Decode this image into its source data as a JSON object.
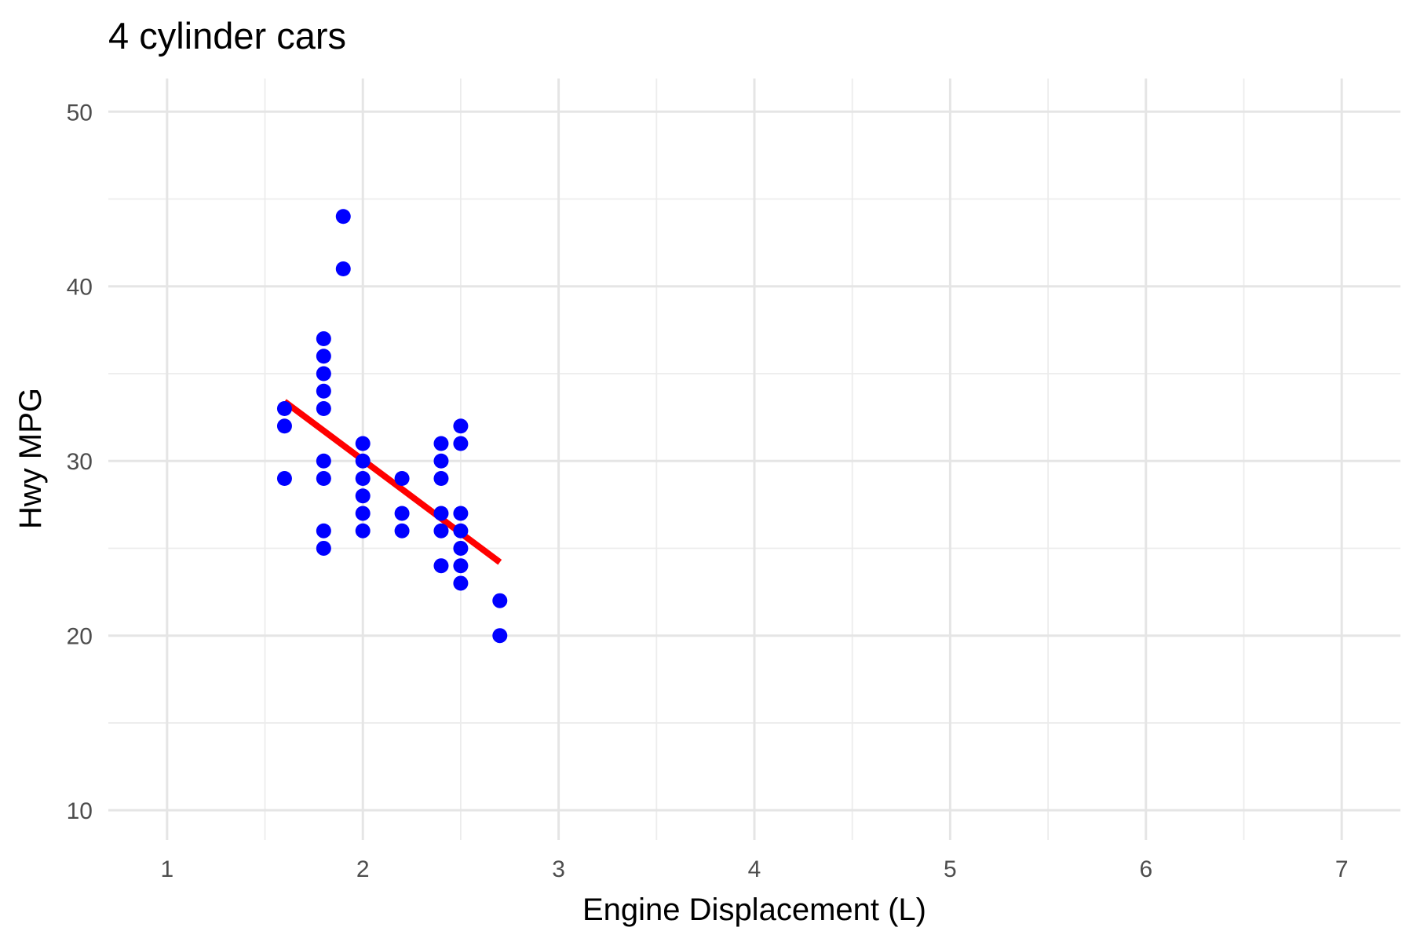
{
  "chart_data": {
    "type": "scatter",
    "title": "4 cylinder cars",
    "xlabel": "Engine Displacement (L)",
    "ylabel": "Hwy MPG",
    "xlim": [
      0.7,
      7.3
    ],
    "ylim": [
      8.3,
      51.9
    ],
    "x_ticks": [
      1,
      2,
      3,
      4,
      5,
      6,
      7
    ],
    "y_ticks": [
      10,
      20,
      30,
      40,
      50
    ],
    "x_minor_ticks": [
      1.5,
      2.5,
      3.5,
      4.5,
      5.5,
      6.5
    ],
    "y_minor_ticks": [
      15,
      25,
      35,
      45
    ],
    "grid": true,
    "point_color": "#0000ff",
    "trend_color": "#ff0000",
    "points": [
      {
        "x": 1.6,
        "y": 33
      },
      {
        "x": 1.6,
        "y": 32
      },
      {
        "x": 1.6,
        "y": 29
      },
      {
        "x": 1.8,
        "y": 37
      },
      {
        "x": 1.8,
        "y": 36
      },
      {
        "x": 1.8,
        "y": 35
      },
      {
        "x": 1.8,
        "y": 34
      },
      {
        "x": 1.8,
        "y": 33
      },
      {
        "x": 1.8,
        "y": 30
      },
      {
        "x": 1.8,
        "y": 29
      },
      {
        "x": 1.8,
        "y": 26
      },
      {
        "x": 1.8,
        "y": 25
      },
      {
        "x": 1.9,
        "y": 44
      },
      {
        "x": 1.9,
        "y": 41
      },
      {
        "x": 2.0,
        "y": 31
      },
      {
        "x": 2.0,
        "y": 30
      },
      {
        "x": 2.0,
        "y": 29
      },
      {
        "x": 2.0,
        "y": 28
      },
      {
        "x": 2.0,
        "y": 27
      },
      {
        "x": 2.0,
        "y": 26
      },
      {
        "x": 2.2,
        "y": 29
      },
      {
        "x": 2.2,
        "y": 27
      },
      {
        "x": 2.2,
        "y": 26
      },
      {
        "x": 2.4,
        "y": 31
      },
      {
        "x": 2.4,
        "y": 30
      },
      {
        "x": 2.4,
        "y": 29
      },
      {
        "x": 2.4,
        "y": 27
      },
      {
        "x": 2.4,
        "y": 26
      },
      {
        "x": 2.4,
        "y": 24
      },
      {
        "x": 2.5,
        "y": 32
      },
      {
        "x": 2.5,
        "y": 31
      },
      {
        "x": 2.5,
        "y": 27
      },
      {
        "x": 2.5,
        "y": 26
      },
      {
        "x": 2.5,
        "y": 25
      },
      {
        "x": 2.5,
        "y": 24
      },
      {
        "x": 2.5,
        "y": 23
      },
      {
        "x": 2.7,
        "y": 22
      },
      {
        "x": 2.7,
        "y": 20
      }
    ],
    "trend_line": {
      "x": [
        1.6,
        2.7
      ],
      "y": [
        33.4,
        24.2
      ]
    }
  }
}
